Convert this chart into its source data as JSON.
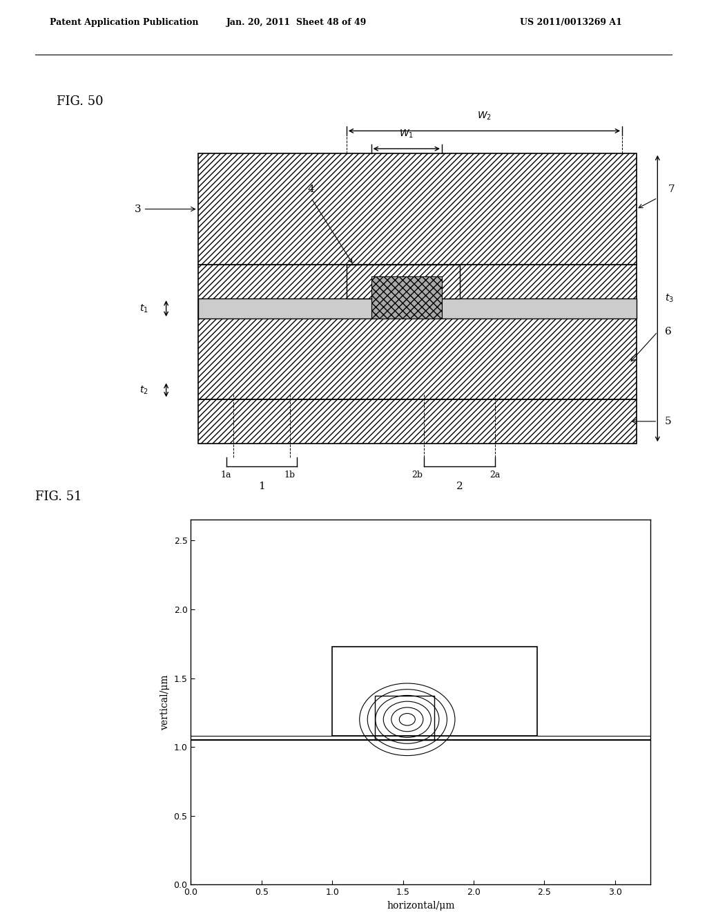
{
  "header_left": "Patent Application Publication",
  "header_mid": "Jan. 20, 2011  Sheet 48 of 49",
  "header_right": "US 2011/0013269 A1",
  "fig50_label": "FIG. 50",
  "fig51_label": "FIG. 51",
  "fig51_xlabel": "horizontal/μm",
  "fig51_ylabel": "vertical/μm",
  "fig51_xlim": [
    0.0,
    3.25
  ],
  "fig51_ylim": [
    0.0,
    2.65
  ],
  "fig51_xticks": [
    0.0,
    0.5,
    1.0,
    1.5,
    2.0,
    2.5,
    3.0
  ],
  "fig51_yticks": [
    0.0,
    0.5,
    1.0,
    1.5,
    2.0,
    2.5
  ],
  "bg_color": "#ffffff",
  "line_color": "#000000",
  "hatch_color": "#555555",
  "hatch_bg": "#dddddd"
}
